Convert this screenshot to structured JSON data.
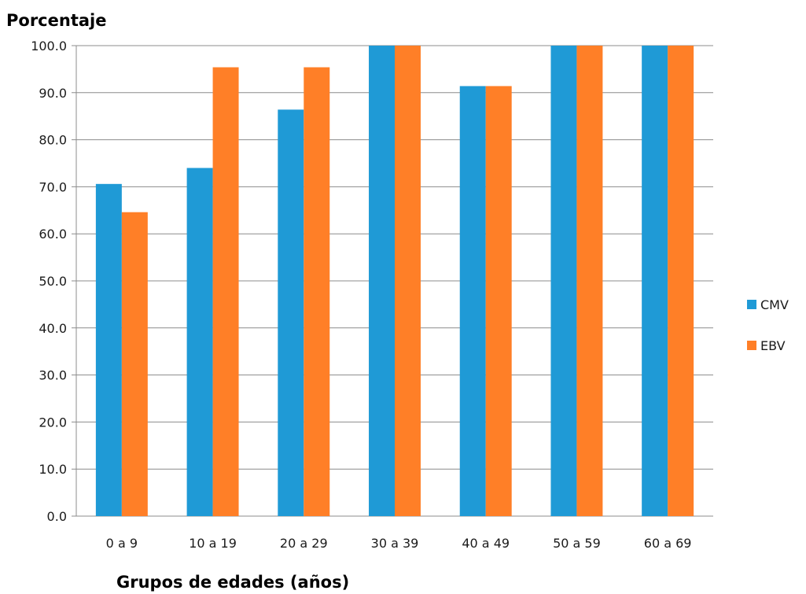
{
  "chart_data": {
    "type": "bar",
    "title": "",
    "ylabel": "Porcentaje",
    "xlabel": "Grupos de edades (años)",
    "categories": [
      "0 a 9",
      "10 a 19",
      "20 a 29",
      "30 a 39",
      "40 a 49",
      "50 a 59",
      "60 a 69"
    ],
    "series": [
      {
        "name": "CMV",
        "color": "#1f9ad6",
        "values": [
          70.6,
          74.0,
          86.4,
          100.0,
          91.4,
          100.0,
          100.0
        ]
      },
      {
        "name": "EBV",
        "color": "#ff7f27",
        "values": [
          64.6,
          95.4,
          95.4,
          100.0,
          91.4,
          100.0,
          100.0
        ]
      }
    ],
    "ylim": [
      0,
      100
    ],
    "yticks": [
      "0.0",
      "10.0",
      "20.0",
      "30.0",
      "40.0",
      "50.0",
      "60.0",
      "70.0",
      "80.0",
      "90.0",
      "100.0"
    ],
    "grid": true,
    "legend_position": "right"
  }
}
